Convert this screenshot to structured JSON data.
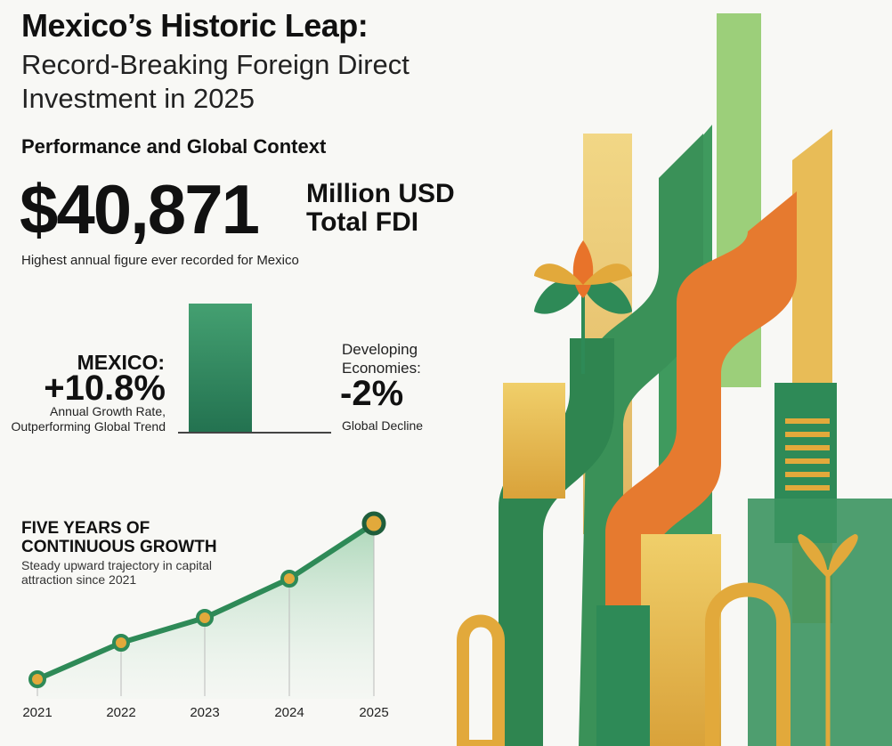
{
  "header": {
    "title": "Mexico’s Historic Leap:",
    "subtitle": "Record-Breaking Foreign Direct Investment in 2025"
  },
  "section_title": "Performance and Global Context",
  "total": {
    "value": "$40,871",
    "unit_line1": "Million USD",
    "unit_line2": "Total FDI",
    "note": "Highest annual figure ever recorded for Mexico"
  },
  "comparison": {
    "mexico": {
      "label": "MEXICO:",
      "value": "+10.8%",
      "description": "Annual Growth Rate, Outperforming Global Trend"
    },
    "developing": {
      "label": "Developing Economies:",
      "value": "-2%",
      "description": "Global Decline"
    }
  },
  "growth": {
    "heading": "FIVE YEARS OF CONTINUOUS GROWTH",
    "subheading": "Steady upward trajectory in capital attraction since 2021",
    "years": [
      "2021",
      "2022",
      "2023",
      "2024",
      "2025"
    ]
  },
  "colors": {
    "green": "#2e8a57",
    "dark_green": "#1f5e3c",
    "gold": "#e2a93b",
    "orange": "#e8732a",
    "fill": "#cfe8d9"
  }
}
